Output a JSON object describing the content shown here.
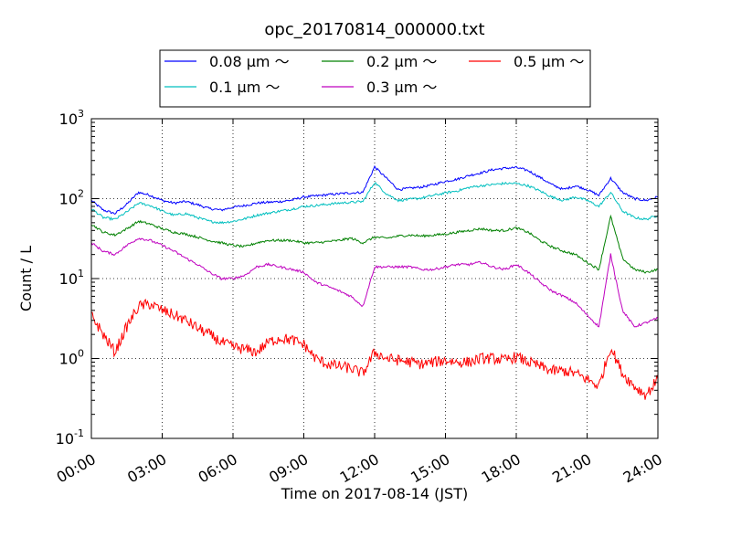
{
  "chart_data": {
    "type": "line",
    "title": "opc_20170814_000000.txt",
    "xlabel": "Time on 2017-08-14 (JST)",
    "ylabel": "Count / L",
    "xlim": [
      "00:00",
      "24:00"
    ],
    "ylim": [
      0.1,
      1000
    ],
    "yscale": "log",
    "grid": true,
    "legend_position": "top-center",
    "x_ticks": [
      "00:00",
      "03:00",
      "06:00",
      "09:00",
      "12:00",
      "15:00",
      "18:00",
      "21:00",
      "24:00"
    ],
    "y_ticks": [
      {
        "base": "10",
        "exp": "-1",
        "value": 0.1
      },
      {
        "base": "10",
        "exp": "0",
        "value": 1
      },
      {
        "base": "10",
        "exp": "1",
        "value": 10
      },
      {
        "base": "10",
        "exp": "2",
        "value": 100
      },
      {
        "base": "10",
        "exp": "3",
        "value": 1000
      }
    ],
    "x": [
      "00:00",
      "00:30",
      "01:00",
      "01:30",
      "02:00",
      "02:30",
      "03:00",
      "03:30",
      "04:00",
      "04:30",
      "05:00",
      "05:30",
      "06:00",
      "06:30",
      "07:00",
      "07:30",
      "08:00",
      "08:30",
      "09:00",
      "09:30",
      "10:00",
      "10:30",
      "11:00",
      "11:30",
      "12:00",
      "12:30",
      "13:00",
      "13:30",
      "14:00",
      "14:30",
      "15:00",
      "15:30",
      "16:00",
      "16:30",
      "17:00",
      "17:30",
      "18:00",
      "18:30",
      "19:00",
      "19:30",
      "20:00",
      "20:30",
      "21:00",
      "21:30",
      "22:00",
      "22:30",
      "23:00",
      "23:30",
      "24:00"
    ],
    "series": [
      {
        "name": "0.08 μm ～",
        "color": "#0000ff",
        "values": [
          95,
          72,
          65,
          85,
          120,
          110,
          95,
          88,
          92,
          84,
          75,
          72,
          78,
          82,
          88,
          90,
          92,
          96,
          105,
          108,
          112,
          115,
          118,
          120,
          250,
          180,
          130,
          135,
          140,
          150,
          165,
          175,
          195,
          210,
          230,
          240,
          245,
          225,
          185,
          150,
          130,
          145,
          130,
          110,
          180,
          120,
          100,
          95,
          105
        ]
      },
      {
        "name": "0.1 μm ～",
        "color": "#00bfbf",
        "values": [
          75,
          58,
          55,
          68,
          88,
          82,
          70,
          62,
          65,
          58,
          52,
          50,
          52,
          56,
          62,
          66,
          70,
          74,
          80,
          82,
          85,
          88,
          90,
          92,
          160,
          115,
          95,
          98,
          102,
          110,
          118,
          125,
          138,
          145,
          150,
          155,
          155,
          145,
          125,
          105,
          95,
          105,
          95,
          80,
          120,
          70,
          58,
          55,
          62
        ]
      },
      {
        "name": "0.2 μm ～",
        "color": "#008000",
        "values": [
          48,
          38,
          35,
          42,
          52,
          48,
          42,
          38,
          36,
          33,
          30,
          28,
          26,
          25,
          28,
          30,
          30,
          30,
          28,
          28,
          29,
          30,
          32,
          28,
          33,
          32,
          34,
          35,
          34,
          35,
          36,
          38,
          40,
          42,
          40,
          40,
          43,
          38,
          30,
          25,
          22,
          20,
          16,
          13,
          60,
          18,
          13,
          12,
          13
        ]
      },
      {
        "name": "0.3 μm ～",
        "color": "#bf00bf",
        "values": [
          28,
          22,
          20,
          26,
          32,
          30,
          26,
          22,
          18,
          15,
          12,
          10,
          10,
          11,
          14,
          15,
          14,
          13,
          12,
          9,
          8,
          7,
          6,
          4.5,
          14,
          14,
          14,
          14,
          13,
          13,
          14,
          15,
          15,
          16,
          14,
          13,
          15,
          12,
          9,
          7,
          6,
          5,
          3.5,
          2.5,
          20,
          4,
          2.5,
          2.8,
          3.2
        ]
      },
      {
        "name": "0.5 μm ～",
        "color": "#ff0000",
        "values": [
          3.5,
          2.0,
          1.2,
          2.5,
          4.5,
          4.8,
          4.0,
          3.5,
          3.0,
          2.4,
          2.0,
          1.6,
          1.4,
          1.3,
          1.2,
          1.6,
          1.8,
          1.7,
          1.5,
          1.0,
          0.85,
          0.8,
          0.75,
          0.65,
          1.2,
          1.0,
          0.95,
          0.9,
          0.85,
          0.9,
          0.95,
          0.9,
          0.9,
          1.0,
          1.0,
          0.95,
          1.05,
          0.9,
          0.8,
          0.7,
          0.7,
          0.65,
          0.55,
          0.45,
          1.4,
          0.65,
          0.45,
          0.35,
          0.55
        ]
      }
    ]
  }
}
